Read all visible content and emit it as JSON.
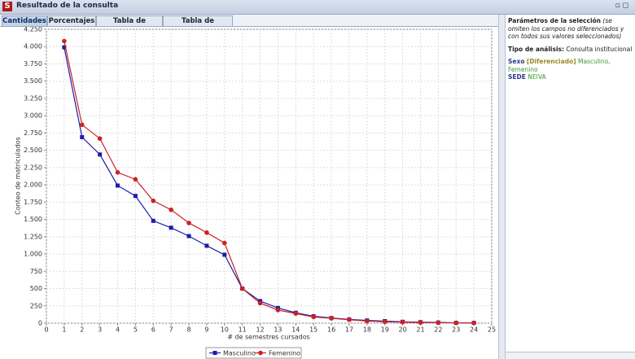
{
  "window": {
    "title": "Resultado de la consulta"
  },
  "tabs": [
    "Cantidades",
    "Porcentajes",
    "Tabla de cantidades",
    "Tabla de porcentajes"
  ],
  "chart_data": {
    "type": "line",
    "x_label": "# de semestres cursados",
    "y_label": "Conteo de matriculados",
    "x": [
      1,
      2,
      3,
      4,
      5,
      6,
      7,
      8,
      9,
      10,
      11,
      12,
      13,
      14,
      15,
      16,
      17,
      18,
      19,
      20,
      21,
      22,
      23,
      24
    ],
    "series": [
      {
        "name": "Masculino",
        "color": "#1c1ca8",
        "marker": "square",
        "values": [
          3990,
          2690,
          2440,
          1990,
          1840,
          1480,
          1380,
          1260,
          1120,
          990,
          500,
          320,
          220,
          150,
          100,
          75,
          55,
          40,
          30,
          20,
          15,
          10,
          5,
          5
        ]
      },
      {
        "name": "Femenino",
        "color": "#cc2222",
        "marker": "circle",
        "values": [
          4080,
          2870,
          2670,
          2180,
          2080,
          1770,
          1640,
          1450,
          1310,
          1160,
          500,
          290,
          190,
          140,
          90,
          70,
          50,
          30,
          20,
          15,
          10,
          8,
          5,
          3
        ]
      }
    ],
    "xlim": [
      0,
      25
    ],
    "xticks": [
      0,
      1,
      2,
      3,
      4,
      5,
      6,
      7,
      8,
      9,
      10,
      11,
      12,
      13,
      14,
      15,
      16,
      17,
      18,
      19,
      20,
      21,
      22,
      23,
      24,
      25
    ],
    "ylim": [
      0,
      4250
    ],
    "yticks": [
      0,
      250,
      500,
      750,
      {
        "value": 1000,
        "label": "1.000"
      },
      {
        "value": 1250,
        "label": "1.250"
      },
      {
        "value": 1500,
        "label": "1.500"
      },
      {
        "value": 1750,
        "label": "1.750"
      },
      {
        "value": 2000,
        "label": "2.000"
      },
      {
        "value": 2250,
        "label": "2.250"
      },
      {
        "value": 2500,
        "label": "2.500"
      },
      {
        "value": 2750,
        "label": "2.750"
      },
      {
        "value": 3000,
        "label": "3.000"
      },
      {
        "value": 3250,
        "label": "3.250"
      },
      {
        "value": 3500,
        "label": "3.500"
      },
      {
        "value": 3750,
        "label": "3.750"
      },
      {
        "value": 4000,
        "label": "4.000"
      },
      {
        "value": 4250,
        "label": "4.250"
      }
    ],
    "grid": true,
    "legend": "bottom"
  },
  "side_panel": {
    "params_title": "Parámetros de la selección",
    "params_note": "(se omiten los campos no diferenciados y con todos sus valores seleccionados)",
    "analysis_label": "Tipo de análisis:",
    "analysis_value": "Consulta institucional",
    "sexo_label": "Sexo",
    "sexo_flag": "[Diferenciado]",
    "sexo_values": "Masculino, Femenino",
    "sede_label": "SEDE",
    "sede_value": "NEIVA"
  }
}
